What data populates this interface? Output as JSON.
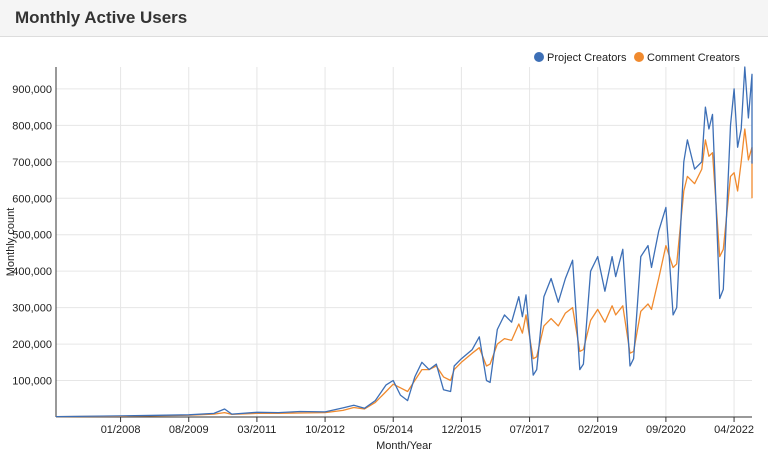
{
  "panel": {
    "title": "Monthly Active Users"
  },
  "chart_data": {
    "type": "line",
    "xlabel": "Month/Year",
    "ylabel": "Monthly count",
    "x_range": [
      "2006-07",
      "2022-09"
    ],
    "ylim": [
      0,
      960000
    ],
    "x_tick_labels": [
      "01/2008",
      "08/2009",
      "03/2011",
      "10/2012",
      "05/2014",
      "12/2015",
      "07/2017",
      "02/2019",
      "09/2020",
      "04/2022"
    ],
    "x_tick_months": [
      "2008-01",
      "2009-08",
      "2011-03",
      "2012-10",
      "2014-05",
      "2015-12",
      "2017-07",
      "2019-02",
      "2020-09",
      "2022-04"
    ],
    "y_ticks": [
      100000,
      200000,
      300000,
      400000,
      500000,
      600000,
      700000,
      800000,
      900000
    ],
    "y_tick_labels": [
      "100,000",
      "200,000",
      "300,000",
      "400,000",
      "500,000",
      "600,000",
      "700,000",
      "800,000",
      "900,000"
    ],
    "grid": true,
    "legend_position": "top-right",
    "series": [
      {
        "name": "Project Creators",
        "color": "#3d6fb6",
        "points": [
          [
            "2006-07",
            1000
          ],
          [
            "2008-01",
            3000
          ],
          [
            "2009-08",
            6000
          ],
          [
            "2010-03",
            10000
          ],
          [
            "2010-06",
            22000
          ],
          [
            "2010-08",
            8000
          ],
          [
            "2011-03",
            13000
          ],
          [
            "2011-09",
            12000
          ],
          [
            "2012-03",
            15000
          ],
          [
            "2012-10",
            14000
          ],
          [
            "2013-03",
            25000
          ],
          [
            "2013-06",
            32000
          ],
          [
            "2013-09",
            24000
          ],
          [
            "2013-12",
            45000
          ],
          [
            "2014-03",
            88000
          ],
          [
            "2014-05",
            100000
          ],
          [
            "2014-07",
            60000
          ],
          [
            "2014-09",
            45000
          ],
          [
            "2014-11",
            110000
          ],
          [
            "2015-01",
            150000
          ],
          [
            "2015-03",
            130000
          ],
          [
            "2015-05",
            145000
          ],
          [
            "2015-07",
            75000
          ],
          [
            "2015-09",
            70000
          ],
          [
            "2015-10",
            140000
          ],
          [
            "2015-12",
            160000
          ],
          [
            "2016-03",
            185000
          ],
          [
            "2016-05",
            220000
          ],
          [
            "2016-07",
            100000
          ],
          [
            "2016-08",
            95000
          ],
          [
            "2016-10",
            240000
          ],
          [
            "2016-12",
            280000
          ],
          [
            "2017-02",
            260000
          ],
          [
            "2017-04",
            330000
          ],
          [
            "2017-05",
            275000
          ],
          [
            "2017-06",
            335000
          ],
          [
            "2017-08",
            115000
          ],
          [
            "2017-09",
            130000
          ],
          [
            "2017-11",
            330000
          ],
          [
            "2018-01",
            380000
          ],
          [
            "2018-03",
            315000
          ],
          [
            "2018-05",
            380000
          ],
          [
            "2018-07",
            430000
          ],
          [
            "2018-09",
            130000
          ],
          [
            "2018-10",
            145000
          ],
          [
            "2018-12",
            400000
          ],
          [
            "2019-02",
            440000
          ],
          [
            "2019-04",
            345000
          ],
          [
            "2019-06",
            440000
          ],
          [
            "2019-07",
            385000
          ],
          [
            "2019-09",
            460000
          ],
          [
            "2019-11",
            140000
          ],
          [
            "2019-12",
            160000
          ],
          [
            "2020-02",
            440000
          ],
          [
            "2020-04",
            470000
          ],
          [
            "2020-05",
            410000
          ],
          [
            "2020-07",
            510000
          ],
          [
            "2020-09",
            575000
          ],
          [
            "2020-11",
            280000
          ],
          [
            "2020-12",
            300000
          ],
          [
            "2021-02",
            700000
          ],
          [
            "2021-03",
            760000
          ],
          [
            "2021-05",
            680000
          ],
          [
            "2021-07",
            700000
          ],
          [
            "2021-08",
            850000
          ],
          [
            "2021-09",
            790000
          ],
          [
            "2021-10",
            830000
          ],
          [
            "2021-12",
            325000
          ],
          [
            "2022-01",
            350000
          ],
          [
            "2022-03",
            800000
          ],
          [
            "2022-04",
            900000
          ],
          [
            "2022-05",
            740000
          ],
          [
            "2022-06",
            790000
          ],
          [
            "2022-07",
            960000
          ],
          [
            "2022-08",
            820000
          ],
          [
            "2022-09",
            940000
          ],
          [
            "2022-09",
            695000
          ]
        ]
      },
      {
        "name": "Comment Creators",
        "color": "#f08a2e",
        "points": [
          [
            "2006-07",
            1000
          ],
          [
            "2008-01",
            2000
          ],
          [
            "2009-08",
            5000
          ],
          [
            "2010-03",
            8000
          ],
          [
            "2010-06",
            12000
          ],
          [
            "2010-08",
            7000
          ],
          [
            "2011-03",
            10000
          ],
          [
            "2011-09",
            10000
          ],
          [
            "2012-03",
            11000
          ],
          [
            "2012-10",
            12000
          ],
          [
            "2013-03",
            18000
          ],
          [
            "2013-06",
            26000
          ],
          [
            "2013-09",
            22000
          ],
          [
            "2013-12",
            40000
          ],
          [
            "2014-03",
            70000
          ],
          [
            "2014-05",
            90000
          ],
          [
            "2014-07",
            80000
          ],
          [
            "2014-09",
            70000
          ],
          [
            "2014-11",
            100000
          ],
          [
            "2015-01",
            130000
          ],
          [
            "2015-03",
            130000
          ],
          [
            "2015-05",
            140000
          ],
          [
            "2015-07",
            110000
          ],
          [
            "2015-09",
            100000
          ],
          [
            "2015-10",
            130000
          ],
          [
            "2015-12",
            150000
          ],
          [
            "2016-03",
            175000
          ],
          [
            "2016-05",
            190000
          ],
          [
            "2016-07",
            140000
          ],
          [
            "2016-08",
            145000
          ],
          [
            "2016-10",
            200000
          ],
          [
            "2016-12",
            215000
          ],
          [
            "2017-02",
            210000
          ],
          [
            "2017-04",
            255000
          ],
          [
            "2017-05",
            230000
          ],
          [
            "2017-06",
            280000
          ],
          [
            "2017-08",
            160000
          ],
          [
            "2017-09",
            165000
          ],
          [
            "2017-11",
            250000
          ],
          [
            "2018-01",
            270000
          ],
          [
            "2018-03",
            250000
          ],
          [
            "2018-05",
            285000
          ],
          [
            "2018-07",
            300000
          ],
          [
            "2018-09",
            180000
          ],
          [
            "2018-10",
            185000
          ],
          [
            "2018-12",
            265000
          ],
          [
            "2019-02",
            295000
          ],
          [
            "2019-04",
            260000
          ],
          [
            "2019-06",
            305000
          ],
          [
            "2019-07",
            280000
          ],
          [
            "2019-09",
            305000
          ],
          [
            "2019-11",
            175000
          ],
          [
            "2019-12",
            180000
          ],
          [
            "2020-02",
            290000
          ],
          [
            "2020-04",
            310000
          ],
          [
            "2020-05",
            295000
          ],
          [
            "2020-07",
            380000
          ],
          [
            "2020-09",
            470000
          ],
          [
            "2020-11",
            410000
          ],
          [
            "2020-12",
            420000
          ],
          [
            "2021-02",
            620000
          ],
          [
            "2021-03",
            660000
          ],
          [
            "2021-05",
            640000
          ],
          [
            "2021-07",
            680000
          ],
          [
            "2021-08",
            760000
          ],
          [
            "2021-09",
            715000
          ],
          [
            "2021-10",
            725000
          ],
          [
            "2021-12",
            440000
          ],
          [
            "2022-01",
            460000
          ],
          [
            "2022-03",
            660000
          ],
          [
            "2022-04",
            670000
          ],
          [
            "2022-05",
            620000
          ],
          [
            "2022-06",
            700000
          ],
          [
            "2022-07",
            790000
          ],
          [
            "2022-08",
            705000
          ],
          [
            "2022-09",
            740000
          ],
          [
            "2022-09",
            600000
          ]
        ]
      }
    ]
  }
}
